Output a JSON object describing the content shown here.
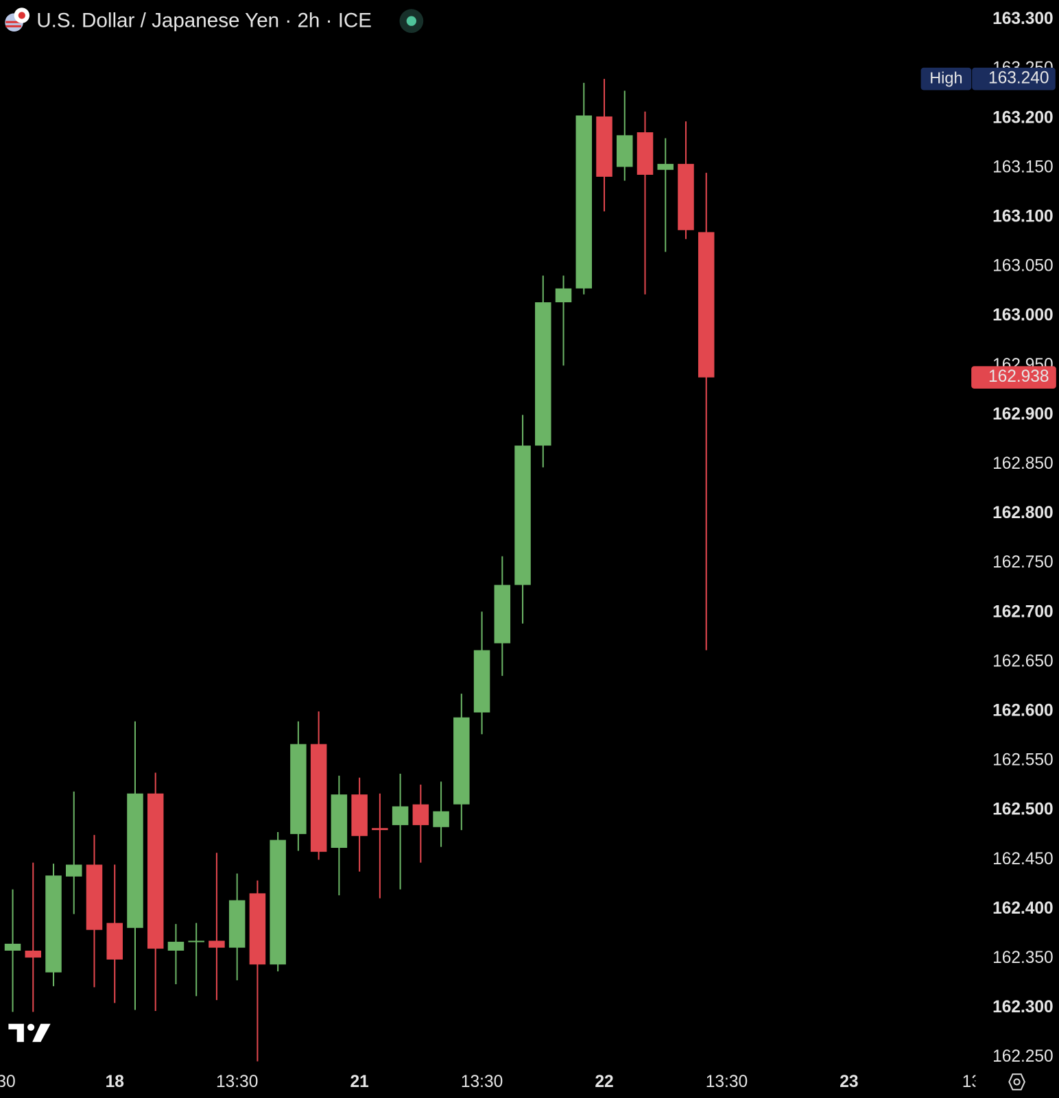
{
  "chart_data": {
    "type": "candlestick",
    "title": "U.S. Dollar / Japanese Yen · 2h · ICE",
    "categories": [
      "30",
      null,
      null,
      null,
      null,
      null,
      "18",
      null,
      null,
      null,
      null,
      null,
      "13:30",
      null,
      null,
      null,
      null,
      null,
      "21",
      null,
      null,
      null,
      null,
      null,
      "13:30",
      null,
      null,
      null,
      null,
      null,
      "22",
      null,
      null,
      null,
      null,
      null,
      "13:30",
      null,
      null,
      null,
      null,
      null,
      "23",
      null,
      null,
      null,
      null,
      null,
      "13"
    ],
    "open": [
      null,
      162.358,
      162.358,
      162.336,
      162.433,
      162.445,
      162.386,
      162.381,
      162.517,
      162.358,
      162.367,
      162.368,
      162.361,
      162.416,
      162.344,
      162.476,
      162.567,
      162.462,
      162.516,
      162.482,
      162.485,
      162.506,
      162.483,
      162.506,
      162.599,
      162.669,
      162.728,
      162.869,
      163.014,
      163.028,
      163.202,
      163.151,
      163.186,
      163.148,
      163.154,
      163.085,
      null,
      null,
      null,
      null,
      null,
      null,
      null,
      null,
      null,
      null,
      null,
      null,
      null
    ],
    "high": [
      null,
      162.42,
      162.447,
      162.446,
      162.519,
      162.475,
      162.445,
      162.59,
      162.538,
      162.385,
      162.386,
      162.457,
      162.436,
      162.429,
      162.478,
      162.59,
      162.6,
      162.535,
      162.533,
      162.517,
      162.537,
      162.526,
      162.529,
      162.618,
      162.701,
      162.757,
      162.9,
      163.041,
      163.041,
      163.236,
      163.24,
      163.228,
      163.207,
      163.18,
      163.197,
      163.145,
      null,
      null,
      null,
      null,
      null,
      null,
      null,
      null,
      null,
      null,
      null,
      null,
      null
    ],
    "low": [
      null,
      162.296,
      162.296,
      162.322,
      162.395,
      162.321,
      162.305,
      162.298,
      162.297,
      162.324,
      162.312,
      162.308,
      162.328,
      162.246,
      162.337,
      162.459,
      162.45,
      162.414,
      162.438,
      162.411,
      162.42,
      162.447,
      162.463,
      162.48,
      162.577,
      162.636,
      162.689,
      162.847,
      162.95,
      163.022,
      163.106,
      163.137,
      163.022,
      163.065,
      163.078,
      162.662,
      null,
      null,
      null,
      null,
      null,
      null,
      null,
      null,
      null,
      null,
      null,
      null,
      null
    ],
    "close": [
      null,
      162.365,
      162.351,
      162.434,
      162.445,
      162.379,
      162.349,
      162.517,
      162.36,
      162.367,
      162.368,
      162.361,
      162.409,
      162.344,
      162.47,
      162.567,
      162.458,
      162.516,
      162.474,
      162.48,
      162.504,
      162.485,
      162.499,
      162.594,
      162.662,
      162.728,
      162.869,
      163.014,
      163.028,
      163.203,
      163.141,
      163.183,
      163.143,
      163.154,
      163.087,
      162.938,
      null,
      null,
      null,
      null,
      null,
      null,
      null,
      null,
      null,
      null,
      null,
      null,
      null
    ],
    "up_color": "#6bb465",
    "down_color": "#e2474e",
    "ylim": [
      162.25,
      163.3
    ],
    "yticks": [
      {
        "value": 163.3,
        "label": "163.300"
      },
      {
        "value": 163.25,
        "label": "163.250"
      },
      {
        "value": 163.2,
        "label": "163.200"
      },
      {
        "value": 163.15,
        "label": "163.150"
      },
      {
        "value": 163.1,
        "label": "163.100"
      },
      {
        "value": 163.05,
        "label": "163.050"
      },
      {
        "value": 163.0,
        "label": "163.000"
      },
      {
        "value": 162.95,
        "label": "162.950"
      },
      {
        "value": 162.9,
        "label": "162.900"
      },
      {
        "value": 162.85,
        "label": "162.850"
      },
      {
        "value": 162.8,
        "label": "162.800"
      },
      {
        "value": 162.75,
        "label": "162.750"
      },
      {
        "value": 162.7,
        "label": "162.700"
      },
      {
        "value": 162.65,
        "label": "162.650"
      },
      {
        "value": 162.6,
        "label": "162.600"
      },
      {
        "value": 162.55,
        "label": "162.550"
      },
      {
        "value": 162.5,
        "label": "162.500"
      },
      {
        "value": 162.45,
        "label": "162.450"
      },
      {
        "value": 162.4,
        "label": "162.400"
      },
      {
        "value": 162.35,
        "label": "162.350"
      },
      {
        "value": 162.3,
        "label": "162.300"
      },
      {
        "value": 162.25,
        "label": "162.250"
      }
    ],
    "grid": false,
    "high_marker": {
      "label": "High",
      "value": 163.24,
      "value_label": "163.240"
    },
    "last_price": {
      "value": 162.938,
      "value_label": "162.938"
    }
  }
}
